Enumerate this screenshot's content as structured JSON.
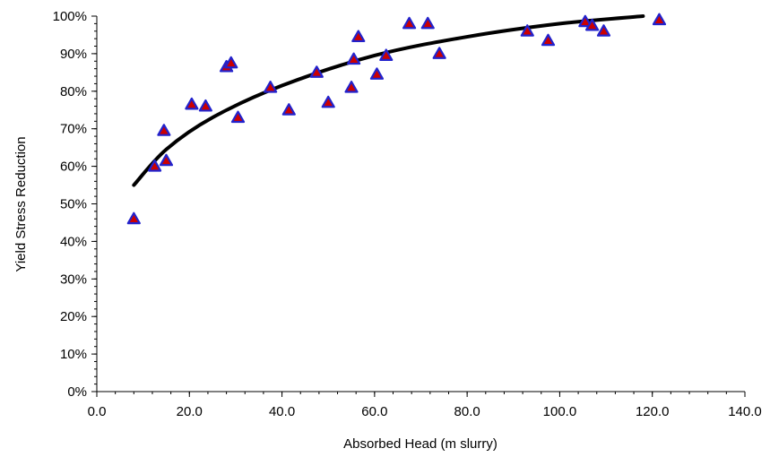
{
  "chart_data": {
    "type": "scatter",
    "title": "",
    "xlabel": "Absorbed Head (m slurry)",
    "ylabel": "Yield Stress Reduction",
    "xlim": [
      0,
      140
    ],
    "ylim": [
      0,
      1
    ],
    "x_ticks": [
      0,
      20,
      40,
      60,
      80,
      100,
      120,
      140
    ],
    "x_tick_labels": [
      "0.0",
      "20.0",
      "40.0",
      "60.0",
      "80.0",
      "100.0",
      "120.0",
      "140.0"
    ],
    "y_ticks": [
      0,
      0.1,
      0.2,
      0.3,
      0.4,
      0.5,
      0.6,
      0.7,
      0.8,
      0.9,
      1.0
    ],
    "y_tick_labels": [
      "0%",
      "10%",
      "20%",
      "30%",
      "40%",
      "50%",
      "60%",
      "70%",
      "80%",
      "90%",
      "100%"
    ],
    "grid": false,
    "legend": "none",
    "series": [
      {
        "marker": "triangle",
        "marker_fill": "#cc0000",
        "marker_edge": "#2222cc",
        "points": [
          [
            8.0,
            0.46
          ],
          [
            12.5,
            0.6
          ],
          [
            14.5,
            0.695
          ],
          [
            15.0,
            0.615
          ],
          [
            20.5,
            0.765
          ],
          [
            23.5,
            0.76
          ],
          [
            28.0,
            0.865
          ],
          [
            29.0,
            0.875
          ],
          [
            30.5,
            0.73
          ],
          [
            37.5,
            0.81
          ],
          [
            41.5,
            0.75
          ],
          [
            47.5,
            0.85
          ],
          [
            50.0,
            0.77
          ],
          [
            55.0,
            0.81
          ],
          [
            55.5,
            0.885
          ],
          [
            56.5,
            0.945
          ],
          [
            60.5,
            0.845
          ],
          [
            62.5,
            0.895
          ],
          [
            67.5,
            0.98
          ],
          [
            71.5,
            0.98
          ],
          [
            74.0,
            0.9
          ],
          [
            93.0,
            0.96
          ],
          [
            97.5,
            0.935
          ],
          [
            105.5,
            0.985
          ],
          [
            107.0,
            0.975
          ],
          [
            109.5,
            0.96
          ],
          [
            121.5,
            0.99
          ]
        ]
      }
    ],
    "trendline": {
      "type": "power",
      "color": "#000000",
      "points": [
        [
          8.0,
          0.55
        ],
        [
          15.0,
          0.645
        ],
        [
          25.0,
          0.73
        ],
        [
          40.0,
          0.815
        ],
        [
          60.0,
          0.895
        ],
        [
          80.0,
          0.945
        ],
        [
          100.0,
          0.98
        ],
        [
          118.0,
          1.0
        ]
      ]
    }
  }
}
